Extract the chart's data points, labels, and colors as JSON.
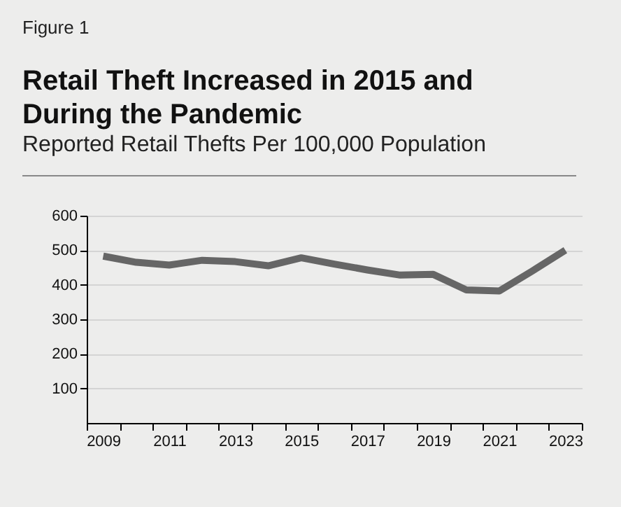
{
  "chart_data": {
    "type": "line",
    "title": "Retail Theft Increased in 2015 and During the Pandemic",
    "subtitle": "Reported Retail Thefts Per 100,000 Population",
    "annotations": [
      "Figure 1"
    ],
    "categories": [
      "2009",
      null,
      "2011",
      null,
      "2013",
      null,
      "2015",
      null,
      "2017",
      null,
      "2019",
      null,
      "2021",
      null,
      "2023"
    ],
    "series": [
      {
        "color": "#666666",
        "values": [
          483,
          465,
          457,
          471,
          467,
          455,
          478,
          460,
          443,
          428,
          430,
          385,
          382,
          440,
          500
        ]
      }
    ],
    "ylim": [
      0,
      600
    ],
    "yticks": [
      100,
      200,
      300,
      400,
      500,
      600
    ],
    "grid": "y",
    "legend": false
  }
}
